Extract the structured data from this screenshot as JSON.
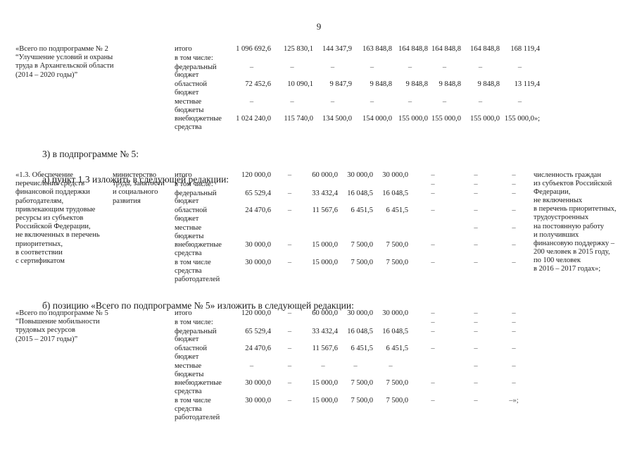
{
  "page_number": "9",
  "subprogram2": {
    "title": "«Всего по подпрограмме № 2\n“Улучшение условий и охраны\nтруда в Архангельской области\n(2014 – 2020 годы)”",
    "rows": [
      {
        "label": "итого",
        "cells": [
          "1 096 692,6",
          "125 830,1",
          "144 347,9",
          "163 848,8",
          "164 848,8",
          "164 848,8",
          "164 848,8",
          "168 119,4"
        ]
      },
      {
        "label": "в том числе:",
        "cells": [
          "",
          "",
          "",
          "",
          "",
          "",
          "",
          ""
        ]
      },
      {
        "label": "федеральный бюджет",
        "cells": [
          "–",
          "–",
          "–",
          "–",
          "–",
          "–",
          "–",
          "–"
        ]
      },
      {
        "label": "областной бюджет",
        "cells": [
          "72 452,6",
          "10 090,1",
          "9 847,9",
          "9 848,8",
          "9 848,8",
          "9 848,8",
          "9 848,8",
          "13 119,4"
        ]
      },
      {
        "label": "местные бюджеты",
        "cells": [
          "–",
          "–",
          "–",
          "–",
          "–",
          "–",
          "–",
          "–"
        ]
      },
      {
        "label": "внебюджетные средства",
        "cells": [
          "1 024 240,0",
          "115 740,0",
          "134 500,0",
          "154 000,0",
          "155 000,0",
          "155 000,0",
          "155 000,0",
          "155 000,0»;"
        ]
      }
    ]
  },
  "amendments": {
    "item3": "3)  в подпрограмме № 5:",
    "item_a": "а)  пункт 1.3 изложить в следующей редакции:",
    "item_b": "б)  позицию «Всего по подпрограмме № 5» изложить в следующей редакции:"
  },
  "point13": {
    "title": "«1.3. Обеспечение\nперечисления средств\nфинансовой поддержки\nработодателям,\nпривлекающим трудовые\nресурсы из субъектов\nРоссийской Федерации,\nне включенных в перечень\nприоритетных,\nв соответствии\nс сертификатом",
    "executor": "министерство\nтруда, занятости\nи социального\nразвития",
    "indicator": "численность граждан\nиз субъектов Российской\nФедерации,\nне включенных\nв перечень приоритетных,\nтрудоустроенных\nна постоянную работу\nи получивших\nфинансовую поддержку –\n200 человек в 2015 году,\nпо 100 человек\nв 2016 – 2017 годах»;",
    "rows": [
      {
        "label": "итого",
        "cells": [
          "120 000,0",
          "–",
          "60 000,0",
          "30 000,0",
          "30 000,0",
          "–",
          "–",
          "–"
        ]
      },
      {
        "label": "в том числе:",
        "cells": [
          "",
          "",
          "",
          "",
          "",
          "–",
          "–",
          "–"
        ]
      },
      {
        "label": "федеральный бюджет",
        "cells": [
          "65 529,4",
          "–",
          "33 432,4",
          "16 048,5",
          "16 048,5",
          "–",
          "–",
          "–"
        ]
      },
      {
        "label": "областной бюджет",
        "cells": [
          "24 470,6",
          "–",
          "11 567,6",
          "6 451,5",
          "6 451,5",
          "–",
          "–",
          "–"
        ]
      },
      {
        "label": "местные бюджеты",
        "cells": [
          "",
          "",
          "",
          "",
          "",
          "",
          "–",
          "–"
        ]
      },
      {
        "label": "внебюджетные средства",
        "cells": [
          "30 000,0",
          "–",
          "15 000,0",
          "7 500,0",
          "7 500,0",
          "–",
          "–",
          "–"
        ]
      },
      {
        "label": "в том числе средства работодателей",
        "cells": [
          "30 000,0",
          "–",
          "15 000,0",
          "7 500,0",
          "7 500,0",
          "–",
          "–",
          "–"
        ]
      }
    ]
  },
  "subprogram5_total": {
    "title": "«Всего по подпрограмме № 5\n“Повышение мобильности\nтрудовых ресурсов\n(2015 – 2017 годы)”",
    "rows": [
      {
        "label": "итого",
        "cells": [
          "120 000,0",
          "–",
          "60 000,0",
          "30 000,0",
          "30 000,0",
          "–",
          "–",
          "–"
        ]
      },
      {
        "label": "в том числе:",
        "cells": [
          "",
          "",
          "",
          "",
          "",
          "–",
          "–",
          "–"
        ]
      },
      {
        "label": "федеральный бюджет",
        "cells": [
          "65 529,4",
          "–",
          "33 432,4",
          "16 048,5",
          "16 048,5",
          "–",
          "–",
          "–"
        ]
      },
      {
        "label": "областной бюджет",
        "cells": [
          "24 470,6",
          "–",
          "11 567,6",
          "6 451,5",
          "6 451,5",
          "–",
          "–",
          "–"
        ]
      },
      {
        "label": "местные бюджеты",
        "cells": [
          "–",
          "–",
          "–",
          "–",
          "–",
          "",
          "–",
          "–"
        ]
      },
      {
        "label": "внебюджетные средства",
        "cells": [
          "30 000,0",
          "–",
          "15 000,0",
          "7 500,0",
          "7 500,0",
          "–",
          "–",
          "–"
        ]
      },
      {
        "label": "в том числе средства работодателей",
        "cells": [
          "30 000,0",
          "–",
          "15 000,0",
          "7 500,0",
          "7 500,0",
          "–",
          "–",
          "–»;"
        ]
      }
    ]
  }
}
